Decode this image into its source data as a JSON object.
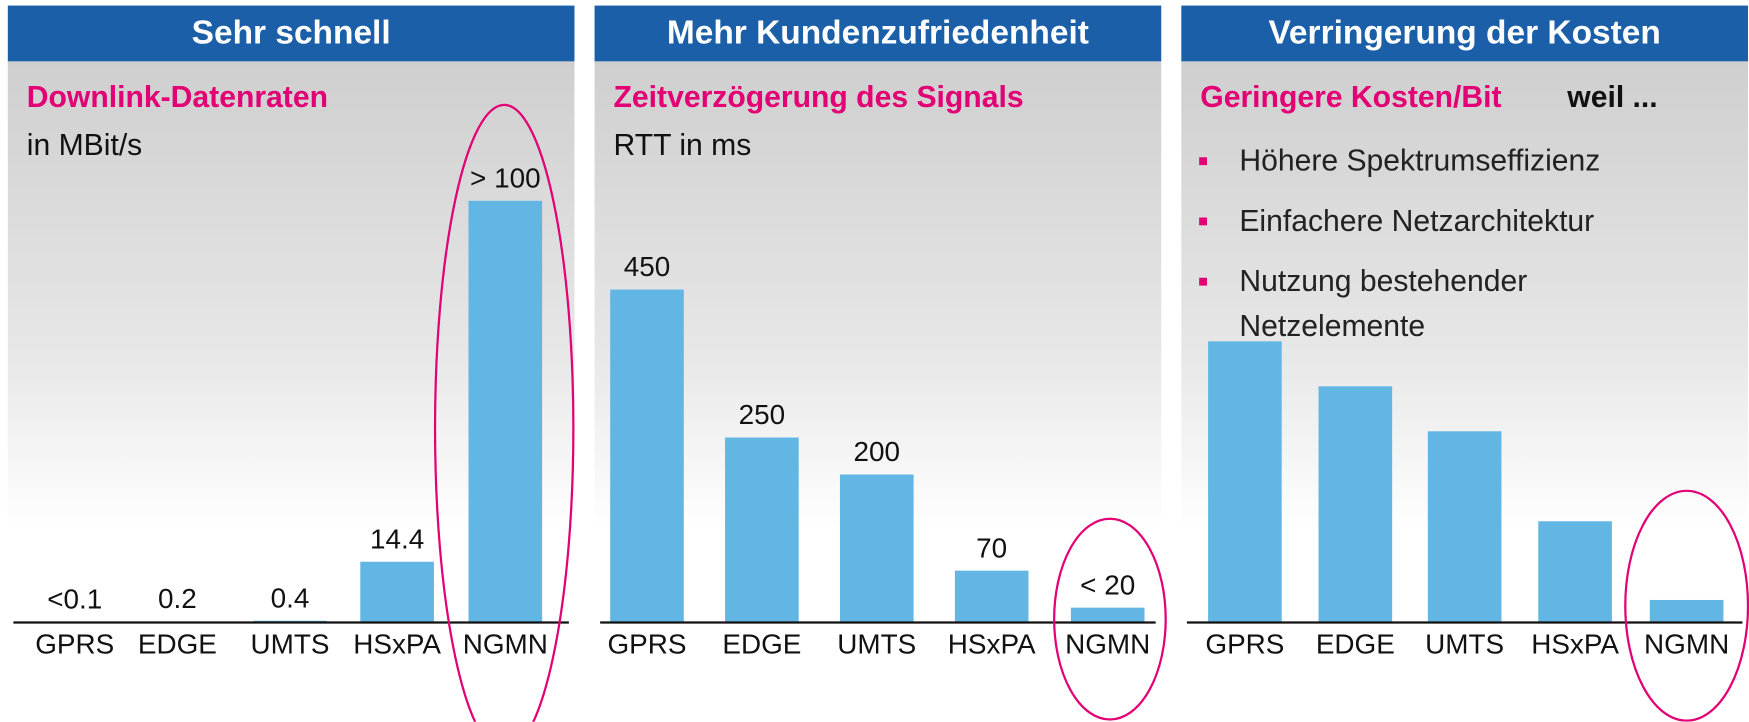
{
  "chart_data": [
    {
      "type": "bar",
      "title": "Sehr schnell",
      "subtitle": "Downlink-Datenraten",
      "y_label": "in MBit/s",
      "categories": [
        "GPRS",
        "EDGE",
        "UMTS",
        "HSxPA",
        "NGMN"
      ],
      "values": [
        0.1,
        0.2,
        0.4,
        14.4,
        100
      ],
      "value_labels": [
        "<0.1",
        "0.2",
        "0.4",
        "14.4",
        "> 100"
      ],
      "color": "#62b6e3",
      "ylim": [
        0,
        100
      ]
    },
    {
      "type": "bar",
      "title": "Mehr Kundenzufriedenheit",
      "subtitle": "Zeitverzögerung des Signals",
      "y_label": "RTT in ms",
      "categories": [
        "GPRS",
        "EDGE",
        "UMTS",
        "HSxPA",
        "NGMN"
      ],
      "values": [
        450,
        250,
        200,
        70,
        20
      ],
      "value_labels": [
        "450",
        "250",
        "200",
        "70",
        "< 20"
      ],
      "color": "#62b6e3",
      "ylim": [
        0,
        570
      ]
    },
    {
      "type": "bar",
      "title": "Verringerung der Kosten",
      "subtitle": "Geringere Kosten/Bit",
      "subtitle_note": "weil ...",
      "bullets": [
        "Höhere Spektrumseffizienz",
        "Einfachere Netzarchitektur",
        "Nutzung bestehender Netzelemente"
      ],
      "categories": [
        "GPRS",
        "EDGE",
        "UMTS",
        "HSxPA",
        "NGMN"
      ],
      "values": [
        100,
        84,
        68,
        36,
        8
      ],
      "color": "#62b6e3",
      "ylim": [
        0,
        150
      ]
    }
  ]
}
